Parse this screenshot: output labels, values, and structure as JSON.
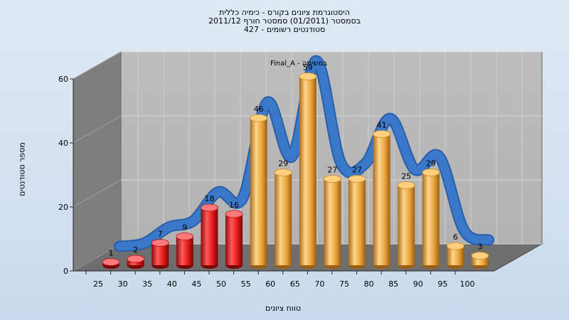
{
  "title": {
    "line1": "היסטוגרמת ציונים בקורס - כימיה כללית",
    "line2": "בסמסטר  (01/2011)  סמסטר חורף 2011/12",
    "line3": "427 - סטודנטים רשומים"
  },
  "chart_data": {
    "type": "bar",
    "title": "היסטוגרמת ציונים בקורס - כימיה כללית",
    "xlabel": "טווח ציונים",
    "ylabel": "מספר סטודנטים",
    "categories": [
      "25",
      "30",
      "35",
      "40",
      "45",
      "50",
      "55",
      "60",
      "65",
      "70",
      "75",
      "80",
      "85",
      "90",
      "95",
      "100"
    ],
    "values": [
      1,
      2,
      7,
      9,
      18,
      16,
      46,
      29,
      59,
      27,
      27,
      41,
      25,
      29,
      6,
      3
    ],
    "bar_colors": [
      "#e02020",
      "#e02020",
      "#e02020",
      "#e02020",
      "#e02020",
      "#e02020",
      "#e6a23a",
      "#e6a23a",
      "#e6a23a",
      "#e6a23a",
      "#e6a23a",
      "#e6a23a",
      "#e6a23a",
      "#e6a23a",
      "#e6a23a",
      "#e6a23a"
    ],
    "series_name": "Final_A - במשימה",
    "line_color": "#3a78c9",
    "ylim": [
      0,
      60
    ],
    "yticks": [
      0,
      20,
      40,
      60
    ],
    "grid": true
  }
}
